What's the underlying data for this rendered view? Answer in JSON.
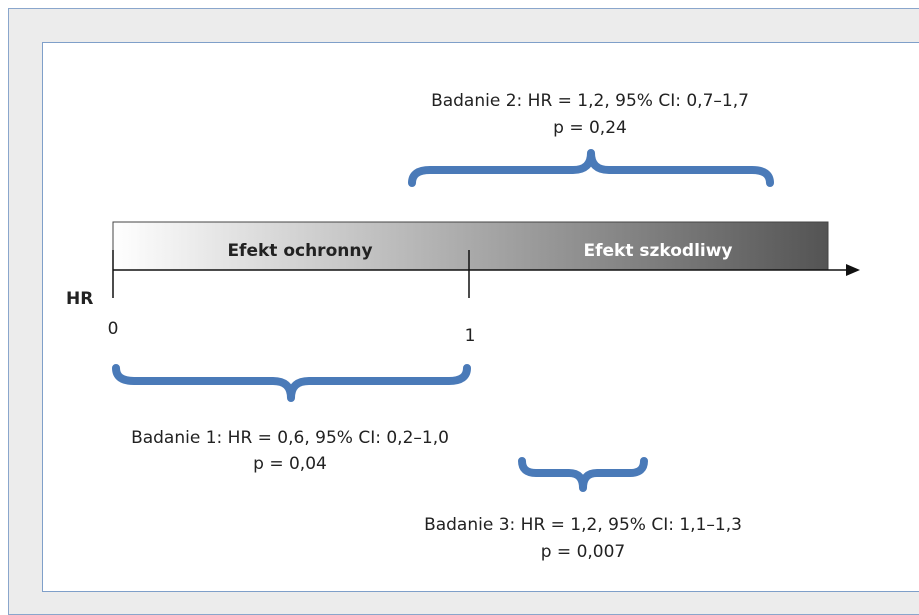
{
  "axis": {
    "label": "HR",
    "ticks": [
      "0",
      "1"
    ]
  },
  "bar": {
    "left_label": "Efekt ochronny",
    "right_label": "Efekt szkodliwy"
  },
  "studies": [
    {
      "lines": [
        "Badanie 1: HR = 0,6, 95% CI: 0,2–1,0",
        "p = 0,04"
      ]
    },
    {
      "lines": [
        "Badanie 2: HR = 1,2, 95% CI: 0,7–1,7",
        "p = 0,24"
      ]
    },
    {
      "lines": [
        "Badanie 3: HR = 1,2, 95% CI: 1,1–1,3",
        "p = 0,007"
      ]
    }
  ]
}
